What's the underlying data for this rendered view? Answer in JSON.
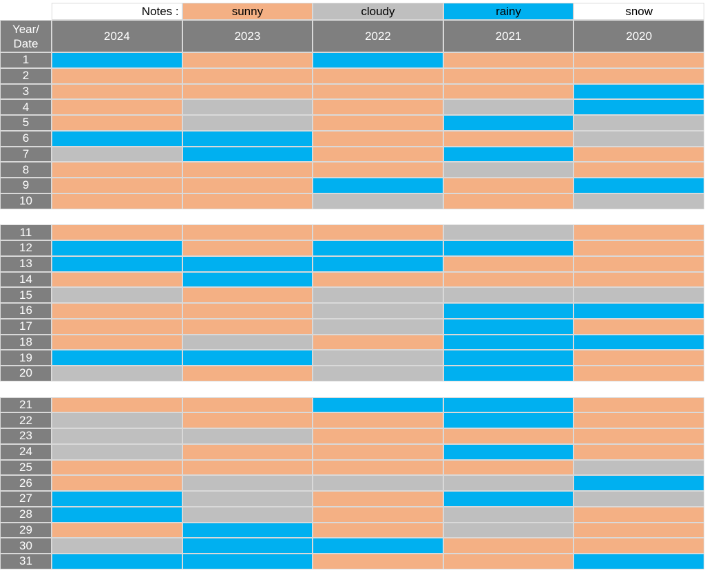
{
  "legend": {
    "title": "Notes :",
    "items": [
      {
        "label": "sunny",
        "color": "#f4b084"
      },
      {
        "label": "cloudy",
        "color": "#bfbfbf"
      },
      {
        "label": "rainy",
        "color": "#00b0f0"
      },
      {
        "label": "snow",
        "color": "#ffffff"
      }
    ]
  },
  "header": {
    "corner": [
      "Year/",
      "Date"
    ],
    "years": [
      "2024",
      "2023",
      "2022",
      "2021",
      "2020"
    ]
  },
  "groups": [
    {
      "rows": [
        {
          "label": "1",
          "cells": [
            "rainy",
            "sunny",
            "rainy",
            "sunny",
            "sunny"
          ]
        },
        {
          "label": "2",
          "cells": [
            "sunny",
            "sunny",
            "sunny",
            "sunny",
            "sunny"
          ]
        },
        {
          "label": "3",
          "cells": [
            "sunny",
            "sunny",
            "sunny",
            "sunny",
            "rainy"
          ]
        },
        {
          "label": "4",
          "cells": [
            "sunny",
            "cloudy",
            "sunny",
            "cloudy",
            "rainy"
          ]
        },
        {
          "label": "5",
          "cells": [
            "sunny",
            "cloudy",
            "sunny",
            "rainy",
            "cloudy"
          ]
        },
        {
          "label": "6",
          "cells": [
            "rainy",
            "rainy",
            "sunny",
            "sunny",
            "cloudy"
          ]
        },
        {
          "label": "7",
          "cells": [
            "cloudy",
            "rainy",
            "sunny",
            "rainy",
            "sunny"
          ]
        },
        {
          "label": "8",
          "cells": [
            "sunny",
            "sunny",
            "sunny",
            "cloudy",
            "sunny"
          ]
        },
        {
          "label": "9",
          "cells": [
            "sunny",
            "sunny",
            "rainy",
            "sunny",
            "rainy"
          ]
        },
        {
          "label": "10",
          "cells": [
            "sunny",
            "sunny",
            "cloudy",
            "sunny",
            "cloudy"
          ]
        }
      ]
    },
    {
      "rows": [
        {
          "label": "11",
          "cells": [
            "sunny",
            "sunny",
            "sunny",
            "cloudy",
            "sunny"
          ]
        },
        {
          "label": "12",
          "cells": [
            "rainy",
            "sunny",
            "rainy",
            "rainy",
            "sunny"
          ]
        },
        {
          "label": "13",
          "cells": [
            "rainy",
            "rainy",
            "rainy",
            "sunny",
            "sunny"
          ]
        },
        {
          "label": "14",
          "cells": [
            "sunny",
            "rainy",
            "sunny",
            "sunny",
            "sunny"
          ]
        },
        {
          "label": "15",
          "cells": [
            "cloudy",
            "sunny",
            "cloudy",
            "cloudy",
            "cloudy"
          ]
        },
        {
          "label": "16",
          "cells": [
            "sunny",
            "sunny",
            "cloudy",
            "rainy",
            "rainy"
          ]
        },
        {
          "label": "17",
          "cells": [
            "sunny",
            "sunny",
            "cloudy",
            "rainy",
            "sunny"
          ]
        },
        {
          "label": "18",
          "cells": [
            "sunny",
            "cloudy",
            "sunny",
            "rainy",
            "rainy"
          ]
        },
        {
          "label": "19",
          "cells": [
            "rainy",
            "rainy",
            "cloudy",
            "rainy",
            "sunny"
          ]
        },
        {
          "label": "20",
          "cells": [
            "cloudy",
            "sunny",
            "cloudy",
            "rainy",
            "sunny"
          ]
        }
      ]
    },
    {
      "rows": [
        {
          "label": "21",
          "cells": [
            "sunny",
            "sunny",
            "rainy",
            "rainy",
            "sunny"
          ]
        },
        {
          "label": "22",
          "cells": [
            "cloudy",
            "sunny",
            "sunny",
            "rainy",
            "sunny"
          ]
        },
        {
          "label": "23",
          "cells": [
            "cloudy",
            "cloudy",
            "sunny",
            "sunny",
            "sunny"
          ]
        },
        {
          "label": "24",
          "cells": [
            "cloudy",
            "sunny",
            "sunny",
            "rainy",
            "sunny"
          ]
        },
        {
          "label": "25",
          "cells": [
            "sunny",
            "sunny",
            "sunny",
            "sunny",
            "cloudy"
          ]
        },
        {
          "label": "26",
          "cells": [
            "sunny",
            "cloudy",
            "cloudy",
            "cloudy",
            "rainy"
          ]
        },
        {
          "label": "27",
          "cells": [
            "rainy",
            "cloudy",
            "sunny",
            "rainy",
            "cloudy"
          ]
        },
        {
          "label": "28",
          "cells": [
            "rainy",
            "cloudy",
            "sunny",
            "cloudy",
            "sunny"
          ]
        },
        {
          "label": "29",
          "cells": [
            "sunny",
            "rainy",
            "sunny",
            "cloudy",
            "sunny"
          ]
        },
        {
          "label": "30",
          "cells": [
            "cloudy",
            "rainy",
            "rainy",
            "sunny",
            "sunny"
          ]
        },
        {
          "label": "31",
          "cells": [
            "rainy",
            "rainy",
            "sunny",
            "sunny",
            "rainy"
          ]
        }
      ]
    }
  ]
}
